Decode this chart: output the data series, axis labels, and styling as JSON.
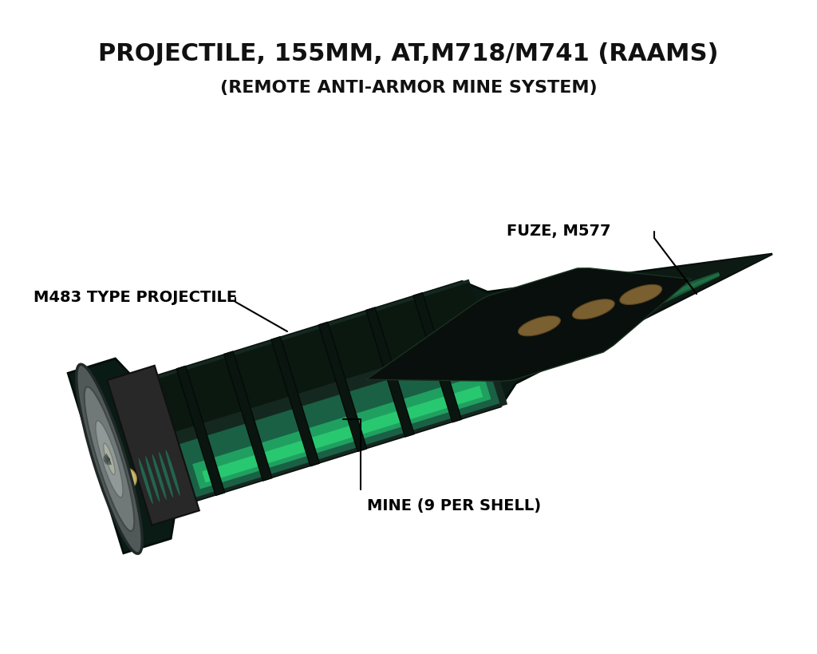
{
  "title_line1": "PROJECTILE, 155MM, AT,M718/M741 (RAAMS)",
  "title_line2": "(REMOTE ANTI-ARMOR MINE SYSTEM)",
  "title_fontsize": 22,
  "subtitle_fontsize": 16,
  "title_color": "#111111",
  "background_color": "#ffffff",
  "label_fuze_text": "FUZE, M577",
  "label_proj_text": "M483 TYPE PROJECTILE",
  "label_mine_text": "MINE (9 PER SHELL)",
  "label_fontsize": 14,
  "fig_width": 10.24,
  "fig_height": 8.19
}
